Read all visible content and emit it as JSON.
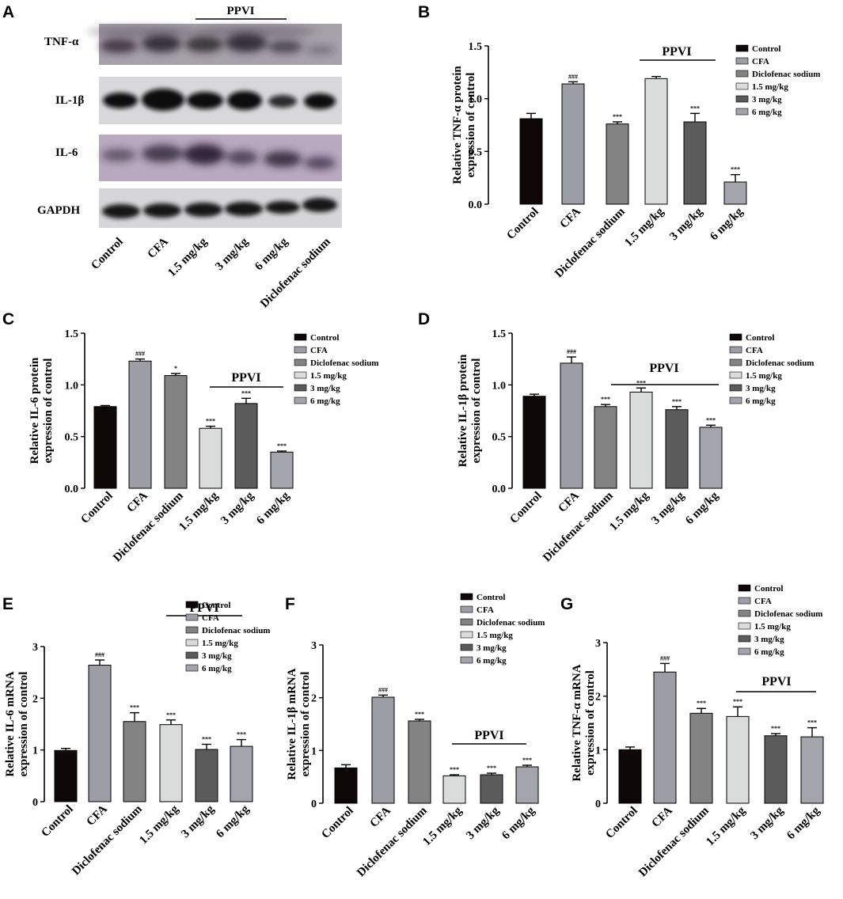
{
  "colors": {
    "Control": "#0d0707",
    "CFA": "#9d9da5",
    "Diclofenac sodium": "#838383",
    "1.5 mg/kg": "#d9dcdb",
    "3 mg/kg": "#5b5b5b",
    "6 mg/kg": "#a4a4ac"
  },
  "blot": {
    "panel_label": "A",
    "group_label": "PPVI",
    "rows": [
      "TNF-α",
      "IL-1β",
      "IL-6",
      "GAPDH"
    ],
    "lanes": [
      "Control",
      "CFA",
      "1.5 mg/kg",
      "3 mg/kg",
      "6 mg/kg",
      "Diclofenac sodium"
    ]
  },
  "chart_data": [
    {
      "panel": "B",
      "type": "bar",
      "categories": [
        "Control",
        "CFA",
        "Diclofenac sodium",
        "1.5 mg/kg",
        "3 mg/kg",
        "6 mg/kg"
      ],
      "values": [
        0.81,
        1.14,
        0.76,
        1.19,
        0.78,
        0.21
      ],
      "errors": [
        0.05,
        0.02,
        0.02,
        0.02,
        0.08,
        0.07
      ],
      "annotations": [
        "",
        "###",
        "***",
        "",
        "***",
        "***"
      ],
      "ylabel": [
        "Relative TNF-α protein",
        "expression of control"
      ],
      "yticks": [
        "0.0",
        "0.5",
        "1.0",
        "1.5"
      ],
      "ylim": [
        0,
        1.5
      ],
      "group_label": "PPVI",
      "legend": [
        "Control",
        "CFA",
        "Diclofenac sodium",
        "1.5 mg/kg",
        "3 mg/kg",
        "6 mg/kg"
      ]
    },
    {
      "panel": "C",
      "type": "bar",
      "categories": [
        "Control",
        "CFA",
        "Diclofenac sodium",
        "1.5 mg/kg",
        "3 mg/kg",
        "6 mg/kg"
      ],
      "values": [
        0.79,
        1.23,
        1.09,
        0.58,
        0.82,
        0.35
      ],
      "errors": [
        0.01,
        0.02,
        0.02,
        0.02,
        0.05,
        0.01
      ],
      "annotations": [
        "",
        "###",
        "*",
        "***",
        "***",
        "***"
      ],
      "ylabel": [
        "Relative IL-6 protein",
        "expression of control"
      ],
      "yticks": [
        "0.0",
        "0.5",
        "1.0",
        "1.5"
      ],
      "ylim": [
        0,
        1.5
      ],
      "group_label": "PPVI",
      "legend": [
        "Control",
        "CFA",
        "Diclofenac sodium",
        "1.5 mg/kg",
        "3 mg/kg",
        "6 mg/kg"
      ]
    },
    {
      "panel": "D",
      "type": "bar",
      "categories": [
        "Control",
        "CFA",
        "Diclofenac sodium",
        "1.5 mg/kg",
        "3 mg/kg",
        "6 mg/kg"
      ],
      "values": [
        0.89,
        1.21,
        0.79,
        0.93,
        0.76,
        0.59
      ],
      "errors": [
        0.02,
        0.06,
        0.02,
        0.04,
        0.03,
        0.02
      ],
      "annotations": [
        "",
        "###",
        "***",
        "***",
        "***",
        "***"
      ],
      "ylabel": [
        "Relative IL-1β protein",
        "expression of control"
      ],
      "yticks": [
        "0.0",
        "0.5",
        "1.0",
        "1.5"
      ],
      "ylim": [
        0,
        1.5
      ],
      "group_label": "PPVI",
      "legend": [
        "Control",
        "CFA",
        "Diclofenac sodium",
        "1.5 mg/kg",
        "3 mg/kg",
        "6 mg/kg"
      ]
    },
    {
      "panel": "E",
      "type": "bar",
      "categories": [
        "Control",
        "CFA",
        "Diclofenac sodium",
        "1.5 mg/kg",
        "3 mg/kg",
        "6 mg/kg"
      ],
      "values": [
        0.99,
        2.64,
        1.55,
        1.49,
        1.01,
        1.07
      ],
      "errors": [
        0.04,
        0.1,
        0.17,
        0.09,
        0.1,
        0.13
      ],
      "annotations": [
        "",
        "###",
        "***",
        "***",
        "***",
        "***"
      ],
      "ylabel": [
        "Relative IL-6 mRNA",
        "expression of control"
      ],
      "yticks": [
        "0",
        "1",
        "2",
        "3"
      ],
      "ylim": [
        0,
        3
      ],
      "group_label": "PPVI",
      "legend": [
        "Control",
        "CFA",
        "Diclofenac sodium",
        "1.5 mg/kg",
        "3 mg/kg",
        "6 mg/kg"
      ]
    },
    {
      "panel": "F",
      "type": "bar",
      "categories": [
        "Control",
        "CFA",
        "Diclofenac sodium",
        "1.5 mg/kg",
        "3 mg/kg",
        "6 mg/kg"
      ],
      "values": [
        0.67,
        2.01,
        1.56,
        0.52,
        0.54,
        0.69
      ],
      "errors": [
        0.06,
        0.04,
        0.03,
        0.02,
        0.03,
        0.03
      ],
      "annotations": [
        "",
        "###",
        "***",
        "***",
        "***",
        "***"
      ],
      "ylabel": [
        "Relative IL-1β mRNA",
        "expression of control"
      ],
      "yticks": [
        "0",
        "1",
        "2",
        "3"
      ],
      "ylim": [
        0,
        3
      ],
      "group_label": "PPVI",
      "legend": [
        "Control",
        "CFA",
        "Diclofenac sodium",
        "1.5 mg/kg",
        "3 mg/kg",
        "6 mg/kg"
      ]
    },
    {
      "panel": "G",
      "type": "bar",
      "categories": [
        "Control",
        "CFA",
        "Diclofenac sodium",
        "1.5 mg/kg",
        "3 mg/kg",
        "6 mg/kg"
      ],
      "values": [
        1.0,
        2.45,
        1.68,
        1.62,
        1.26,
        1.24
      ],
      "errors": [
        0.05,
        0.16,
        0.09,
        0.18,
        0.04,
        0.17
      ],
      "annotations": [
        "",
        "###",
        "***",
        "***",
        "***",
        "***"
      ],
      "ylabel": [
        "Relative TNF-α mRNA",
        "expression of control"
      ],
      "yticks": [
        "0",
        "1",
        "2",
        "3"
      ],
      "ylim": [
        0,
        3
      ],
      "group_label": "PPVI",
      "legend": [
        "Control",
        "CFA",
        "Diclofenac sodium",
        "1.5 mg/kg",
        "3 mg/kg",
        "6 mg/kg"
      ]
    }
  ]
}
